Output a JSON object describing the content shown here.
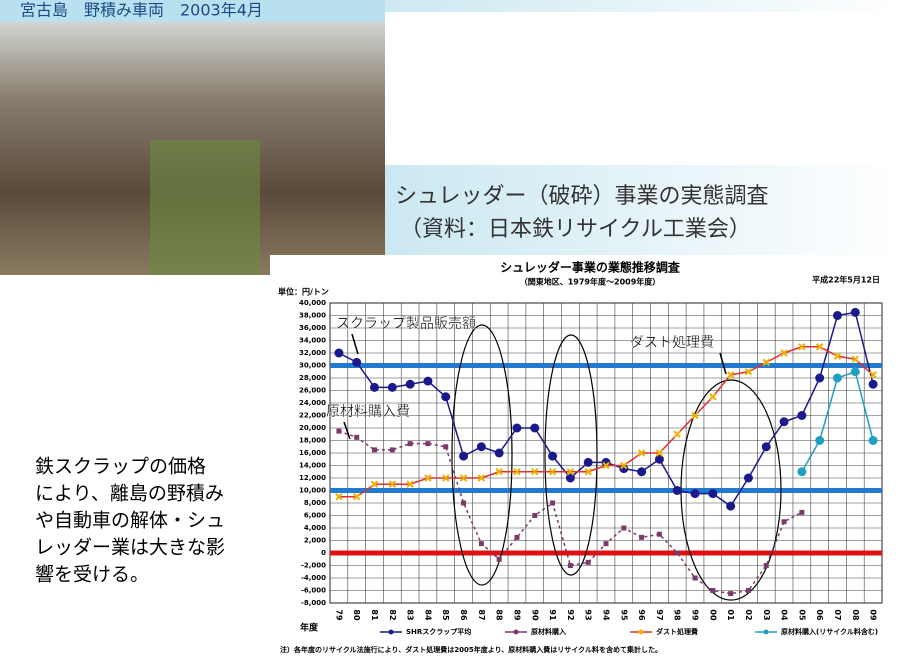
{
  "slide": {
    "photo_caption": "宮古島　野積み車両　2003年4月",
    "heading": "シュレッダー（破砕）事業の実態調査",
    "source": "（資料：日本鉄リサイクル工業会）",
    "body": [
      "鉄スクラップの価格",
      "により、離島の野積み",
      "や自動車の解体・シュ",
      "レッダー業は大きな影",
      "響を受ける。"
    ]
  },
  "chart_data": {
    "type": "line",
    "title": "シュレッダー事業の業態推移調査",
    "subtitle": "（関東地区、1979年度～2009年度）",
    "date": "平成22年5月12日",
    "unit": "単位：円/トン",
    "x_label": "年度",
    "note": "注）各年度のリサイクル法施行により、ダスト処理費は2005年度より、原材料購入費はリサイクル料を含めて集計した。",
    "grid": true,
    "categories": [
      "79",
      "80",
      "81",
      "82",
      "83",
      "84",
      "85",
      "86",
      "87",
      "88",
      "89",
      "90",
      "91",
      "92",
      "93",
      "94",
      "95",
      "96",
      "97",
      "98",
      "99",
      "00",
      "01",
      "02",
      "03",
      "04",
      "05",
      "06",
      "07",
      "08",
      "09"
    ],
    "ylim": [
      -8000,
      40000
    ],
    "yticks": [
      {
        "value": -8000,
        "label": "-8,000"
      },
      {
        "value": -6000,
        "label": "-6,000"
      },
      {
        "value": -4000,
        "label": "-4,000"
      },
      {
        "value": -2000,
        "label": "-2,000"
      },
      0,
      {
        "value": 2000,
        "label": "2,000"
      },
      {
        "value": 4000,
        "label": "4,000"
      },
      {
        "value": 6000,
        "label": "6,000"
      },
      {
        "value": 8000,
        "label": "8,000"
      },
      {
        "value": 10000,
        "label": "10,000"
      },
      {
        "value": 12000,
        "label": "12,000"
      },
      {
        "value": 14000,
        "label": "14,000"
      },
      {
        "value": 16000,
        "label": "16,000"
      },
      {
        "value": 18000,
        "label": "18,000"
      },
      {
        "value": 20000,
        "label": "20,000"
      },
      {
        "value": 22000,
        "label": "22,000"
      },
      {
        "value": 24000,
        "label": "24,000"
      },
      {
        "value": 26000,
        "label": "26,000"
      },
      {
        "value": 28000,
        "label": "28,000"
      },
      {
        "value": 30000,
        "label": "30,000"
      },
      {
        "value": 32000,
        "label": "32,000"
      },
      {
        "value": 34000,
        "label": "34,000"
      },
      {
        "value": 36000,
        "label": "36,000"
      },
      {
        "value": 38000,
        "label": "38,000"
      },
      {
        "value": 40000,
        "label": "40,000"
      }
    ],
    "reference_lines": [
      {
        "value": 30000,
        "color": "#1f7ad0"
      },
      {
        "value": 10000,
        "color": "#1f7ad0"
      },
      {
        "value": 0,
        "color": "#e01010"
      }
    ],
    "annotations": [
      "スクラップ製品販売額",
      "ダスト処理費",
      "原材料購入費"
    ],
    "series": [
      {
        "name": "SHRスクラップ平均",
        "color": "#1a1a8c",
        "marker": "circle",
        "dashed": false,
        "values": [
          32000,
          30500,
          26500,
          26500,
          27000,
          27500,
          25000,
          15500,
          17000,
          16000,
          20000,
          20000,
          15500,
          12000,
          14500,
          14500,
          13500,
          13000,
          15000,
          10000,
          9500,
          9500,
          7500,
          12000,
          17000,
          21000,
          22000,
          28000,
          38000,
          38500,
          27000
        ]
      },
      {
        "name": "原材料購入",
        "color": "#7a3a6a",
        "marker": "square",
        "dashed": true,
        "values": [
          19500,
          18500,
          16500,
          16500,
          17500,
          17500,
          17000,
          8000,
          1500,
          -1000,
          2500,
          6000,
          8000,
          -2000,
          -1500,
          1500,
          4000,
          2500,
          3000,
          0,
          -4000,
          -6000,
          -6500,
          -6000,
          -2000,
          5000,
          6500,
          null,
          null,
          null,
          null
        ]
      },
      {
        "name": "ダスト処理費",
        "color": "#f0b000",
        "marker": "x",
        "dashed": false,
        "values": [
          9000,
          9000,
          11000,
          11000,
          11000,
          12000,
          12000,
          12000,
          12000,
          13000,
          13000,
          13000,
          13000,
          13000,
          13000,
          14000,
          14000,
          16000,
          16000,
          19000,
          22000,
          25000,
          28500,
          29000,
          30500,
          32000,
          33000,
          33000,
          31500,
          31000,
          28500
        ]
      },
      {
        "name": "原材料購入(リサイクル料含む)",
        "color": "#20a0c0",
        "marker": "circle",
        "dashed": false,
        "values": [
          null,
          null,
          null,
          null,
          null,
          null,
          null,
          null,
          null,
          null,
          null,
          null,
          null,
          null,
          null,
          null,
          null,
          null,
          null,
          null,
          null,
          null,
          null,
          null,
          null,
          null,
          13000,
          18000,
          28000,
          29000,
          18000
        ]
      }
    ]
  }
}
